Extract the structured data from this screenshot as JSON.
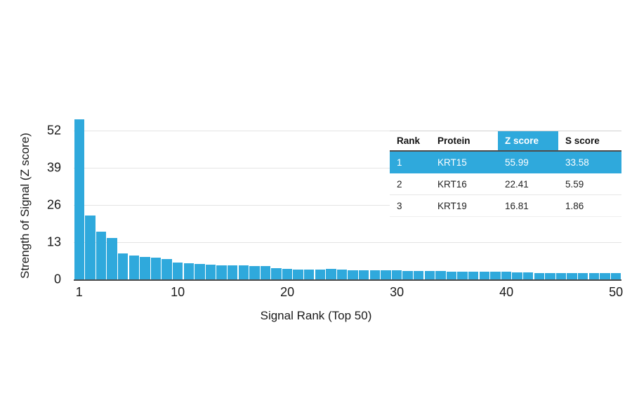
{
  "chart_data": {
    "type": "bar",
    "title": "",
    "xlabel": "Signal Rank (Top 50)",
    "ylabel": "Strength of Signal (Z score)",
    "bar_color": "#2FA9DC",
    "grid": true,
    "ylim": [
      0,
      56
    ],
    "yticks": [
      0,
      13,
      26,
      39,
      52
    ],
    "xticks": [
      1,
      10,
      20,
      30,
      40,
      50
    ],
    "x": [
      1,
      2,
      3,
      4,
      5,
      6,
      7,
      8,
      9,
      10,
      11,
      12,
      13,
      14,
      15,
      16,
      17,
      18,
      19,
      20,
      21,
      22,
      23,
      24,
      25,
      26,
      27,
      28,
      29,
      30,
      31,
      32,
      33,
      34,
      35,
      36,
      37,
      38,
      39,
      40,
      41,
      42,
      43,
      44,
      45,
      46,
      47,
      48,
      49,
      50
    ],
    "values": [
      55.99,
      22.41,
      16.81,
      14.6,
      9.2,
      8.3,
      7.9,
      7.5,
      7.2,
      5.8,
      5.6,
      5.3,
      5.1,
      5.0,
      4.9,
      4.8,
      4.7,
      4.6,
      3.9,
      3.6,
      3.5,
      3.5,
      3.4,
      3.6,
      3.4,
      3.3,
      3.3,
      3.2,
      3.2,
      3.1,
      3.0,
      3.0,
      2.9,
      2.9,
      2.8,
      2.8,
      2.7,
      2.7,
      2.6,
      2.6,
      2.4,
      2.4,
      2.3,
      2.3,
      2.3,
      2.2,
      2.2,
      2.2,
      2.1,
      2.1
    ]
  },
  "table": {
    "headers": [
      "Rank",
      "Protein",
      "Z score",
      "S score"
    ],
    "highlight_header_index": 2,
    "highlight_row_index": 0,
    "highlight_color": "#2FA9DC",
    "rows": [
      [
        "1",
        "KRT15",
        "55.99",
        "33.58"
      ],
      [
        "2",
        "KRT16",
        "22.41",
        "5.59"
      ],
      [
        "3",
        "KRT19",
        "16.81",
        "1.86"
      ]
    ]
  },
  "axes": {
    "xlabel": "Signal Rank (Top 50)",
    "ylabel": "Strength of Signal (Z score)"
  }
}
